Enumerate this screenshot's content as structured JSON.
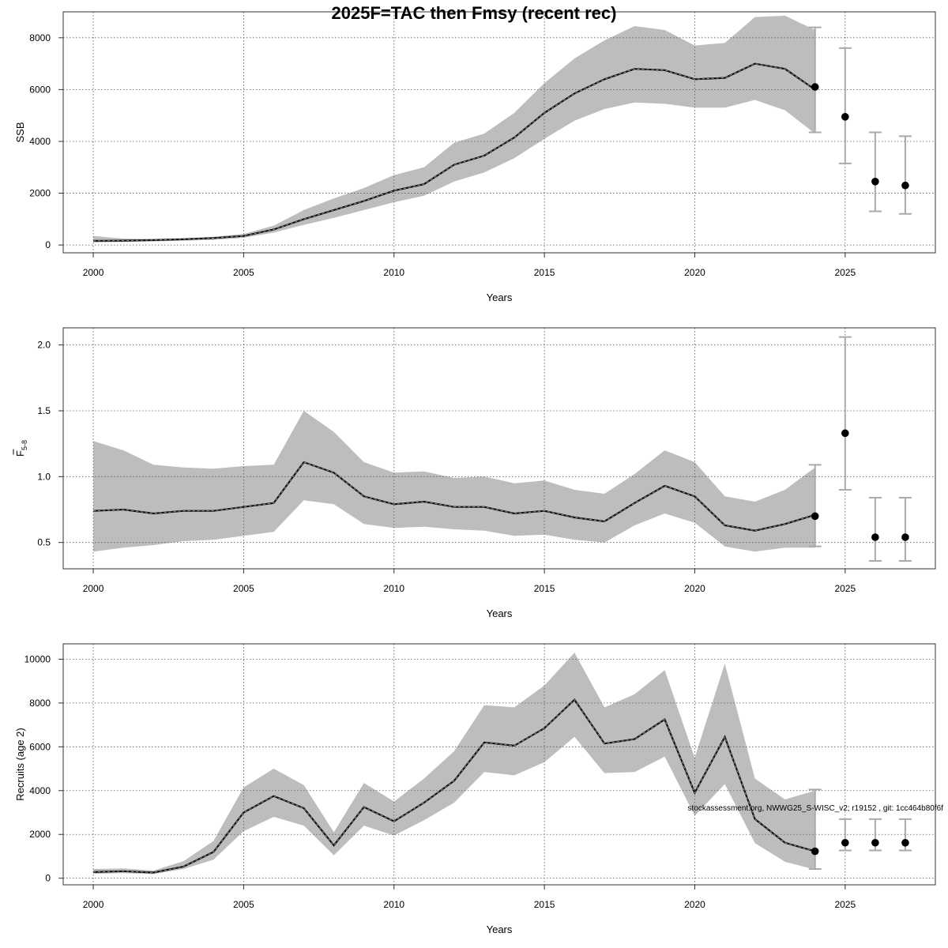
{
  "figure": {
    "title": "2025F=TAC then Fmsy (recent rec)",
    "footnote": "stockassessment.org, NWWG25_S-WISC_v2; r19152 , git: 1cc464b80f6f"
  },
  "chart_data": [
    {
      "type": "line",
      "panel": "ssb",
      "xlabel": "Years",
      "ylabel": "SSB",
      "xlim": [
        1999,
        2028
      ],
      "ylim": [
        -300,
        9000
      ],
      "x_ticks": [
        2000,
        2005,
        2010,
        2015,
        2020,
        2025
      ],
      "y_ticks": [
        0,
        2000,
        4000,
        6000,
        8000
      ],
      "y_tick_labels": [
        "0",
        "2000",
        "4000",
        "6000",
        "8000"
      ],
      "grid": true,
      "x": [
        2000,
        2001,
        2002,
        2003,
        2004,
        2005,
        2006,
        2007,
        2008,
        2009,
        2010,
        2011,
        2012,
        2013,
        2014,
        2015,
        2016,
        2017,
        2018,
        2019,
        2020,
        2021,
        2022,
        2023,
        2024
      ],
      "estimate": [
        160,
        170,
        190,
        220,
        270,
        350,
        600,
        1000,
        1350,
        1700,
        2100,
        2350,
        3100,
        3450,
        4150,
        5100,
        5850,
        6400,
        6800,
        6750,
        6400,
        6450,
        7000,
        6800,
        6000
      ],
      "lower": [
        100,
        120,
        140,
        170,
        200,
        280,
        480,
        780,
        1050,
        1350,
        1650,
        1900,
        2450,
        2800,
        3350,
        4100,
        4800,
        5250,
        5500,
        5450,
        5300,
        5300,
        5600,
        5200,
        4300
      ],
      "upper": [
        350,
        250,
        230,
        260,
        320,
        430,
        750,
        1350,
        1800,
        2200,
        2700,
        3000,
        3950,
        4300,
        5100,
        6250,
        7200,
        7900,
        8450,
        8300,
        7700,
        7800,
        8800,
        8850,
        8300
      ],
      "projection": [
        {
          "year": 2024,
          "median": 6100,
          "low": 4350,
          "high": 8400
        },
        {
          "year": 2025,
          "median": 4950,
          "low": 3150,
          "high": 7600
        },
        {
          "year": 2026,
          "median": 2450,
          "low": 1300,
          "high": 4350
        },
        {
          "year": 2027,
          "median": 2300,
          "low": 1200,
          "high": 4200
        }
      ]
    },
    {
      "type": "line",
      "panel": "fbar",
      "xlabel": "Years",
      "ylabel": "F",
      "ylabel_sub": "5-8",
      "xlim": [
        1999,
        2028
      ],
      "ylim": [
        0.3,
        2.13
      ],
      "x_ticks": [
        2000,
        2005,
        2010,
        2015,
        2020,
        2025
      ],
      "y_ticks": [
        0.5,
        1.0,
        1.5,
        2.0
      ],
      "y_tick_labels": [
        "0.5",
        "1.0",
        "1.5",
        "2.0"
      ],
      "grid": true,
      "x": [
        2000,
        2001,
        2002,
        2003,
        2004,
        2005,
        2006,
        2007,
        2008,
        2009,
        2010,
        2011,
        2012,
        2013,
        2014,
        2015,
        2016,
        2017,
        2018,
        2019,
        2020,
        2021,
        2022,
        2023,
        2024
      ],
      "estimate": [
        0.74,
        0.75,
        0.72,
        0.74,
        0.74,
        0.77,
        0.8,
        1.11,
        1.03,
        0.85,
        0.79,
        0.81,
        0.77,
        0.77,
        0.72,
        0.74,
        0.69,
        0.66,
        0.8,
        0.93,
        0.85,
        0.63,
        0.59,
        0.64,
        0.71
      ],
      "lower": [
        0.43,
        0.46,
        0.48,
        0.51,
        0.52,
        0.55,
        0.58,
        0.82,
        0.79,
        0.64,
        0.61,
        0.62,
        0.6,
        0.59,
        0.55,
        0.56,
        0.52,
        0.5,
        0.63,
        0.72,
        0.65,
        0.47,
        0.43,
        0.46,
        0.46
      ],
      "upper": [
        1.27,
        1.2,
        1.09,
        1.07,
        1.06,
        1.08,
        1.09,
        1.5,
        1.34,
        1.11,
        1.03,
        1.04,
        0.99,
        1.0,
        0.95,
        0.97,
        0.9,
        0.87,
        1.02,
        1.2,
        1.11,
        0.85,
        0.81,
        0.9,
        1.07
      ],
      "projection": [
        {
          "year": 2024,
          "median": 0.7,
          "low": 0.47,
          "high": 1.09
        },
        {
          "year": 2025,
          "median": 1.33,
          "low": 0.9,
          "high": 2.06
        },
        {
          "year": 2026,
          "median": 0.54,
          "low": 0.36,
          "high": 0.84
        },
        {
          "year": 2027,
          "median": 0.54,
          "low": 0.36,
          "high": 0.84
        }
      ]
    },
    {
      "type": "line",
      "panel": "recruits",
      "xlabel": "Years",
      "ylabel": "Recruits (age 2)",
      "xlim": [
        1999,
        2028
      ],
      "ylim": [
        -300,
        10700
      ],
      "x_ticks": [
        2000,
        2005,
        2010,
        2015,
        2020,
        2025
      ],
      "y_ticks": [
        0,
        2000,
        4000,
        6000,
        8000,
        10000
      ],
      "y_tick_labels": [
        "0",
        "2000",
        "4000",
        "6000",
        "8000",
        "10000"
      ],
      "grid": true,
      "x": [
        2000,
        2001,
        2002,
        2003,
        2004,
        2005,
        2006,
        2007,
        2008,
        2009,
        2010,
        2011,
        2012,
        2013,
        2014,
        2015,
        2016,
        2017,
        2018,
        2019,
        2020,
        2021,
        2022,
        2023,
        2024
      ],
      "estimate": [
        280,
        320,
        260,
        530,
        1200,
        3000,
        3750,
        3200,
        1500,
        3250,
        2600,
        3450,
        4450,
        6200,
        6050,
        6850,
        8150,
        6150,
        6350,
        7250,
        3900,
        6450,
        2700,
        1620,
        1230
      ],
      "lower": [
        200,
        230,
        190,
        420,
        850,
        2150,
        2800,
        2400,
        1050,
        2400,
        1950,
        2650,
        3450,
        4850,
        4700,
        5300,
        6450,
        4800,
        4850,
        5550,
        2850,
        4300,
        1600,
        750,
        400
      ],
      "upper": [
        420,
        450,
        350,
        780,
        1700,
        4150,
        5000,
        4250,
        2100,
        4350,
        3500,
        4550,
        5800,
        7900,
        7800,
        8800,
        10300,
        7800,
        8400,
        9500,
        5500,
        9800,
        4550,
        3600,
        4000
      ],
      "projection": [
        {
          "year": 2024,
          "median": 1230,
          "low": 420,
          "high": 4050
        },
        {
          "year": 2025,
          "median": 1620,
          "low": 1270,
          "high": 2700
        },
        {
          "year": 2026,
          "median": 1620,
          "low": 1270,
          "high": 2700
        },
        {
          "year": 2027,
          "median": 1620,
          "low": 1270,
          "high": 2700
        }
      ]
    }
  ]
}
